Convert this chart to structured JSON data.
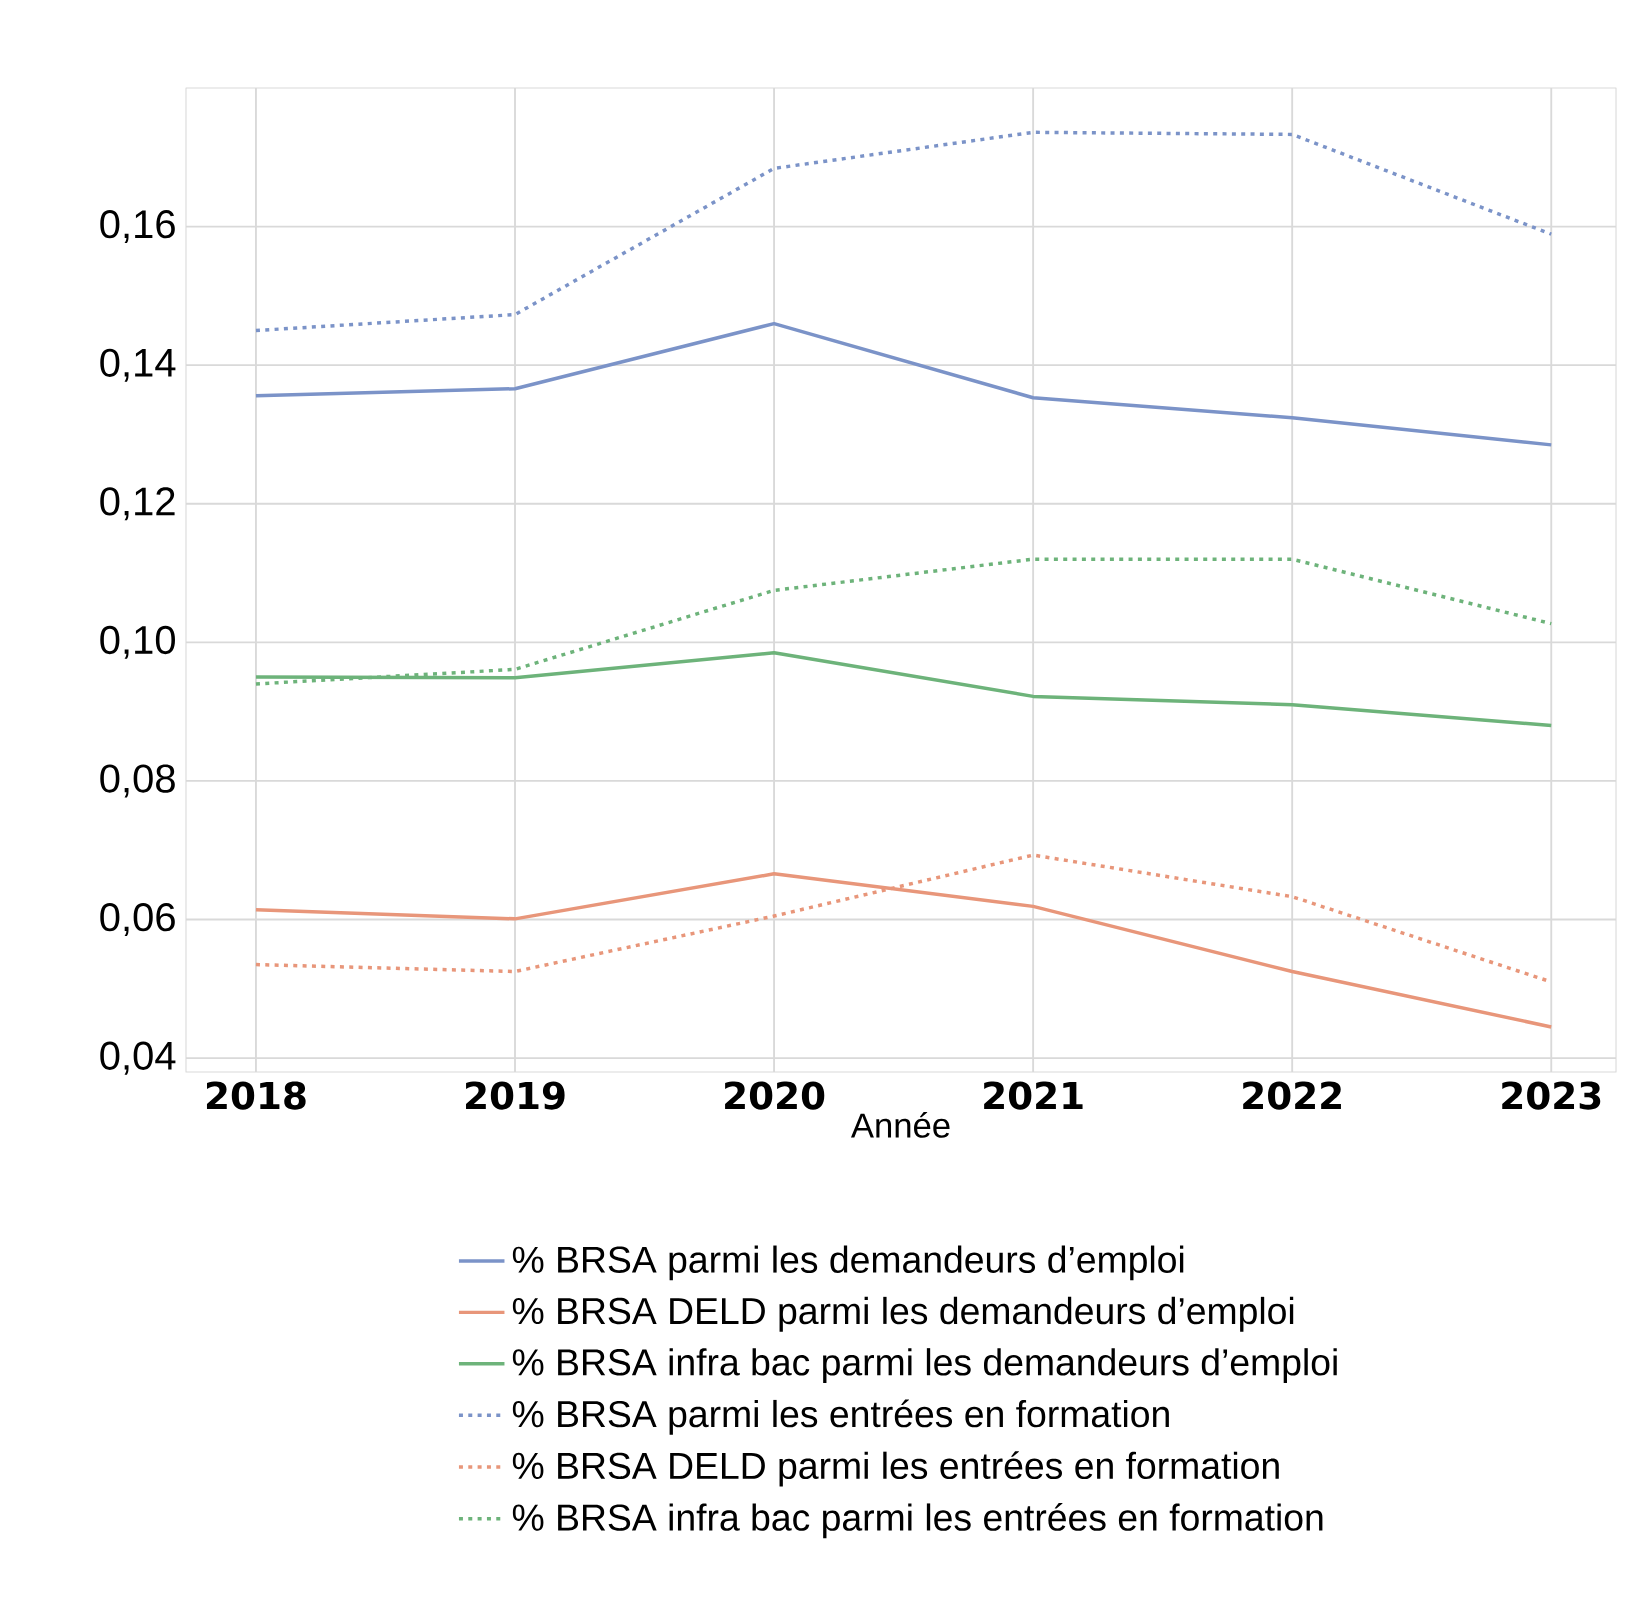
{
  "chart_data": {
    "type": "line",
    "xlabel": "Année",
    "x": [
      2018,
      2019,
      2020,
      2021,
      2022,
      2023
    ],
    "xlim": [
      2017.73,
      2023.25
    ],
    "xticks": [
      2018,
      2019,
      2020,
      2021,
      2022,
      2023
    ],
    "ylim": [
      0.038,
      0.18
    ],
    "yticks": [
      {
        "value": 0.04,
        "label": "0,04"
      },
      {
        "value": 0.06,
        "label": "0,06"
      },
      {
        "value": 0.08,
        "label": "0,08"
      },
      {
        "value": 0.1,
        "label": "0,10"
      },
      {
        "value": 0.12,
        "label": "0,12"
      },
      {
        "value": 0.14,
        "label": "0,14"
      },
      {
        "value": 0.16,
        "label": "0,16"
      }
    ],
    "grid": true,
    "legend": "bottom",
    "line_style": "solid",
    "series": [
      {
        "name": "% BRSA parmi les demandeurs d’emploi",
        "color": "#7b93c8",
        "values": [
          0.1356,
          0.1366,
          0.146,
          0.1353,
          0.1324,
          0.1285
        ]
      },
      {
        "name": "% BRSA DELD parmi les demandeurs d’emploi",
        "color": "#e8967a",
        "values": [
          0.0614,
          0.0601,
          0.0666,
          0.0619,
          0.0525,
          0.0445
        ]
      },
      {
        "name": "% BRSA infra bac parmi les demandeurs d’emploi",
        "color": "#6db37a",
        "values": [
          0.095,
          0.0949,
          0.0985,
          0.0922,
          0.091,
          0.088
        ]
      },
      {
        "name": "% BRSA parmi les entrées en formation",
        "color": "#7b93c8",
        "line_style": "dotted",
        "values": [
          0.145,
          0.1473,
          0.1684,
          0.1736,
          0.1733,
          0.1589
        ]
      },
      {
        "name": "% BRSA DELD parmi les entrées en formation",
        "color": "#e8967a",
        "line_style": "dotted",
        "values": [
          0.0535,
          0.0525,
          0.0605,
          0.0693,
          0.0633,
          0.051
        ]
      },
      {
        "name": "% BRSA infra bac parmi les entrées en formation",
        "color": "#6db37a",
        "line_style": "dotted",
        "values": [
          0.094,
          0.0961,
          0.1075,
          0.112,
          0.112,
          0.1027
        ]
      }
    ]
  }
}
